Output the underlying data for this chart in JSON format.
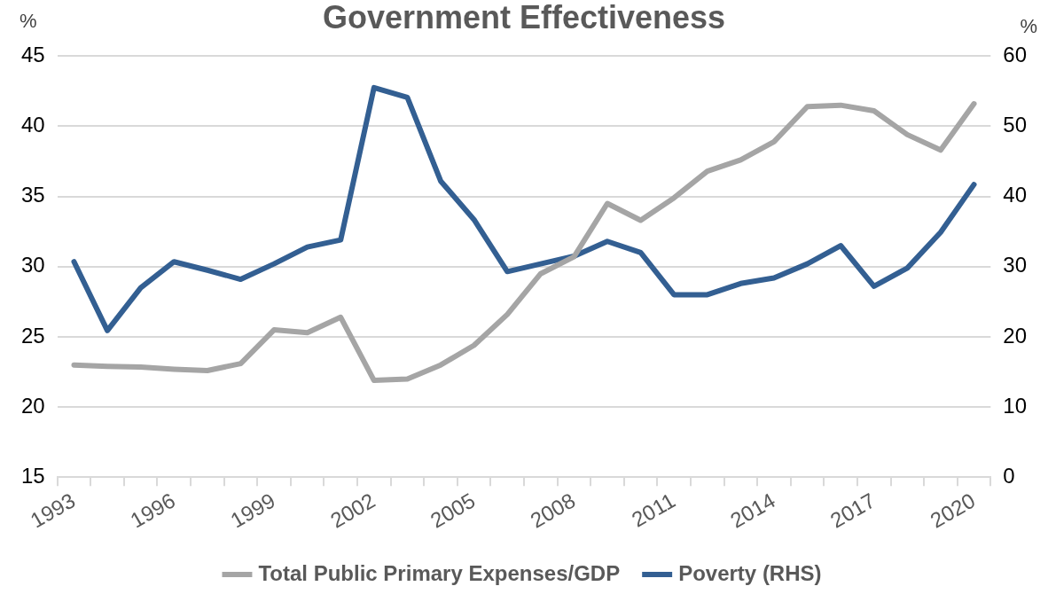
{
  "chart_data": {
    "type": "line",
    "title": "Government Effectiveness",
    "ylabel": "%",
    "y2label": "%",
    "categories": [
      "1993",
      null,
      null,
      "1996",
      null,
      null,
      "1999",
      null,
      null,
      "2002",
      null,
      null,
      "2005",
      null,
      null,
      "2008",
      null,
      null,
      "2011",
      null,
      null,
      "2014",
      null,
      null,
      "2017",
      null,
      null,
      "2020"
    ],
    "series": [
      {
        "name": "Total Public Primary Expenses/GDP",
        "color": "#a5a5a5",
        "values": [
          23.0,
          22.9,
          22.85,
          22.7,
          22.6,
          23.1,
          25.5,
          25.3,
          26.4,
          21.9,
          22.0,
          23.0,
          24.4,
          26.6,
          29.5,
          30.7,
          34.5,
          33.3,
          34.9,
          36.8,
          37.6,
          38.9,
          41.4,
          41.5,
          41.1,
          39.4,
          38.3,
          41.6
        ]
      },
      {
        "name": "Poverty (RHS)",
        "color": "#335f92",
        "axis": "y2",
        "values": [
          30.7,
          20.9,
          27.0,
          30.7,
          29.5,
          28.2,
          30.4,
          32.8,
          33.8,
          55.5,
          54.1,
          42.2,
          36.7,
          29.3,
          30.4,
          31.5,
          33.6,
          32.0,
          26.0,
          26.0,
          27.6,
          28.4,
          30.4,
          33.0,
          27.2,
          29.8,
          34.9,
          41.7
        ]
      }
    ],
    "ylim": [
      15,
      45
    ],
    "yticks": [
      15,
      20,
      25,
      30,
      35,
      40,
      45
    ],
    "y2lim": [
      0,
      60
    ],
    "y2ticks": [
      0,
      10,
      20,
      30,
      40,
      50,
      60
    ],
    "grid": "y",
    "legend": "bottom",
    "marker": "none",
    "line_style": "solid"
  }
}
